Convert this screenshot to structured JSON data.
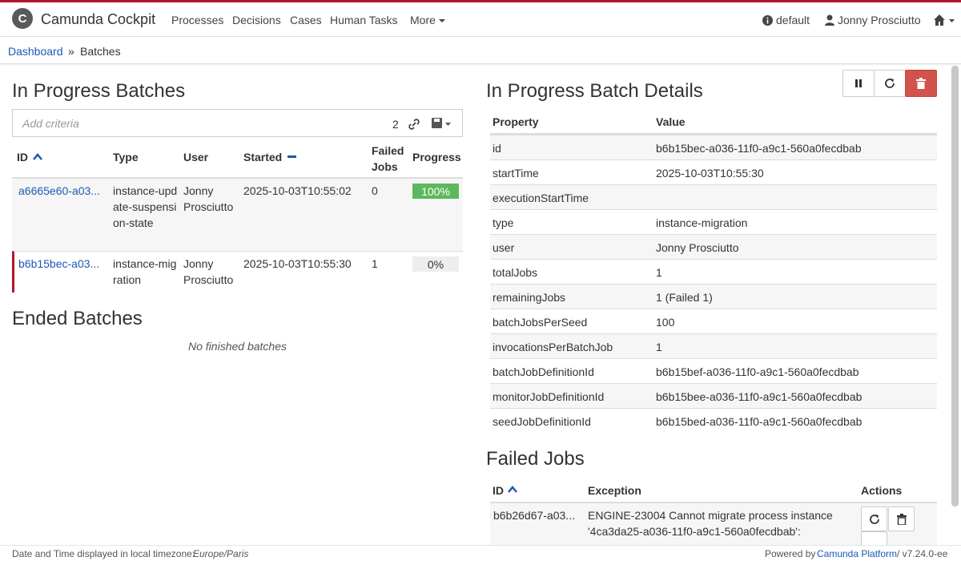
{
  "header": {
    "brand": "Camunda Cockpit",
    "nav": [
      "Processes",
      "Decisions",
      "Cases",
      "Human Tasks",
      "More"
    ],
    "engine": "default",
    "user": "Jonny Prosciutto"
  },
  "breadcrumb": {
    "link": "Dashboard",
    "separator": "»",
    "current": "Batches"
  },
  "in_progress": {
    "title": "In Progress Batches",
    "search_placeholder": "Add criteria",
    "count": 2,
    "columns": [
      "ID",
      "Type",
      "User",
      "Started",
      "Failed Jobs",
      "Progress"
    ],
    "rows": [
      {
        "id": "a6665e60-a03...",
        "type": "instance-update-suspension-state",
        "user": "Jonny Prosciutto",
        "started": "2025-10-03T10:55:02",
        "failed_jobs": 0,
        "progress": 100,
        "progress_label": "100%"
      },
      {
        "id": "b6b15bec-a03...",
        "type": "instance-migration",
        "user": "Jonny Prosciutto",
        "started": "2025-10-03T10:55:30",
        "failed_jobs": 1,
        "progress": 0,
        "progress_label": "0%"
      }
    ]
  },
  "ended": {
    "title": "Ended Batches",
    "empty": "No finished batches"
  },
  "details": {
    "title": "In Progress Batch Details",
    "columns": [
      "Property",
      "Value"
    ],
    "rows": [
      [
        "id",
        "b6b15bec-a036-11f0-a9c1-560a0fecdbab"
      ],
      [
        "startTime",
        "2025-10-03T10:55:30"
      ],
      [
        "executionStartTime",
        ""
      ],
      [
        "type",
        "instance-migration"
      ],
      [
        "user",
        "Jonny Prosciutto"
      ],
      [
        "totalJobs",
        "1"
      ],
      [
        "remainingJobs",
        "1 (Failed 1)"
      ],
      [
        "batchJobsPerSeed",
        "100"
      ],
      [
        "invocationsPerBatchJob",
        "1"
      ],
      [
        "batchJobDefinitionId",
        "b6b15bef-a036-11f0-a9c1-560a0fecdbab"
      ],
      [
        "monitorJobDefinitionId",
        "b6b15bee-a036-11f0-a9c1-560a0fecdbab"
      ],
      [
        "seedJobDefinitionId",
        "b6b15bed-a036-11f0-a9c1-560a0fecdbab"
      ]
    ]
  },
  "failed_jobs": {
    "title": "Failed Jobs",
    "columns": [
      "ID",
      "Exception",
      "Actions"
    ],
    "rows": [
      {
        "id": "b6b26d67-a03...",
        "exception": "ENGINE-23004 Cannot migrate process instance '4ca3da25-a036-11f0-a9c1-560a0fecdbab':"
      }
    ]
  },
  "footer": {
    "timezone_label": "Date and Time displayed in local timezone:",
    "timezone": "Europe/Paris",
    "powered_by": "Powered by",
    "platform": "Camunda Platform",
    "version": "/ v7.24.0-ee"
  }
}
